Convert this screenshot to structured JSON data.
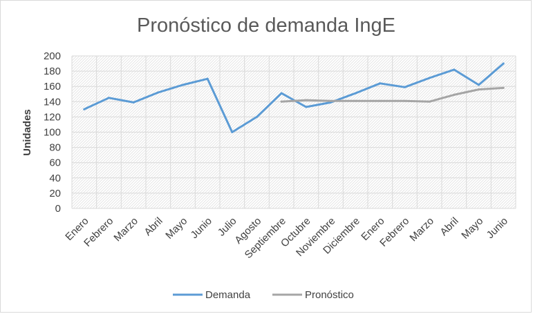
{
  "chart_data": {
    "type": "line",
    "title": "Pronóstico de demanda IngE",
    "xlabel": "",
    "ylabel": "Unidades",
    "ylim": [
      0,
      200
    ],
    "yticks": [
      0,
      20,
      40,
      60,
      80,
      100,
      120,
      140,
      160,
      180,
      200
    ],
    "grid": true,
    "legend_position": "bottom",
    "categories": [
      "Enero",
      "Febrero",
      "Marzo",
      "Abril",
      "Mayo",
      "Junio",
      "Julio",
      "Agosto",
      "Septiembre",
      "Octubre",
      "Noviembre",
      "Diciembre",
      "Enero",
      "Febrero",
      "Marzo",
      "Abril",
      "Mayo",
      "Junio"
    ],
    "series": [
      {
        "name": "Demanda",
        "color": "#5b9bd5",
        "values": [
          130,
          145,
          139,
          152,
          162,
          170,
          100,
          120,
          151,
          133,
          139,
          151,
          164,
          159,
          171,
          182,
          162,
          190
        ]
      },
      {
        "name": "Pronóstico",
        "color": "#a5a5a5",
        "values": [
          null,
          null,
          null,
          null,
          null,
          null,
          null,
          null,
          140,
          142,
          141,
          141,
          141,
          141,
          140,
          149,
          156,
          158
        ]
      }
    ]
  }
}
